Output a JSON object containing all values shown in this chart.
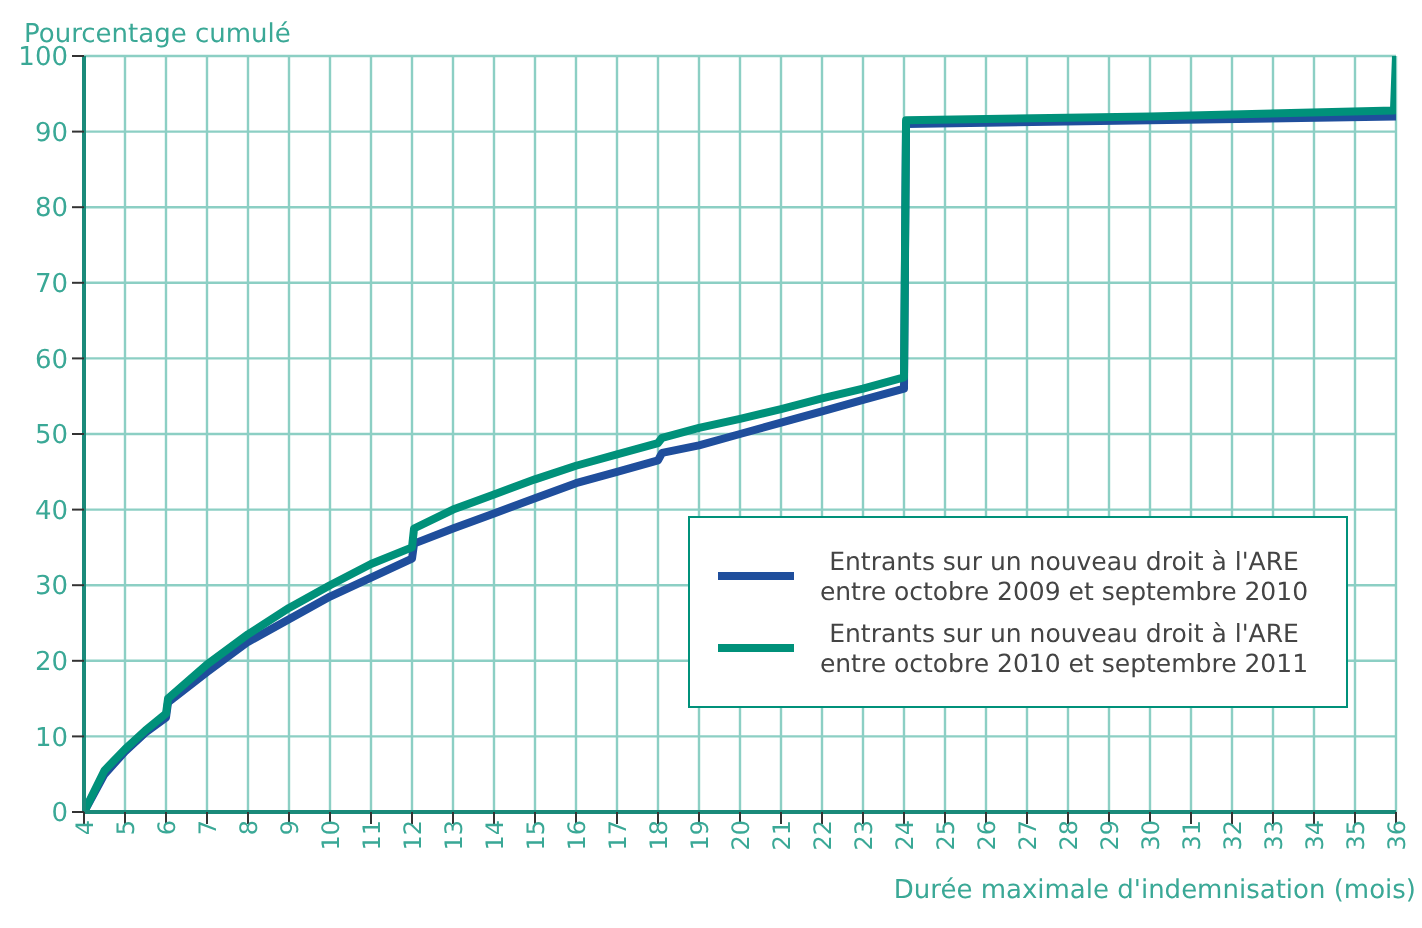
{
  "chart_data": {
    "type": "line",
    "ylabel": "Pourcentage cumulé",
    "xlabel": "Durée maximale d'indemnisation (mois)",
    "xlim": [
      4,
      36
    ],
    "xticks": [
      4,
      5,
      6,
      7,
      8,
      9,
      10,
      11,
      12,
      13,
      14,
      15,
      16,
      17,
      18,
      19,
      20,
      21,
      22,
      23,
      24,
      25,
      26,
      27,
      28,
      29,
      30,
      31,
      32,
      33,
      34,
      35,
      36
    ],
    "ylim": [
      0,
      100
    ],
    "yticks": [
      0,
      10,
      20,
      30,
      40,
      50,
      60,
      70,
      80,
      90,
      100
    ],
    "grid": true,
    "legend": "bottom right",
    "marker": "none",
    "line_style": "solid",
    "series": [
      {
        "name": "Entrants sur un nouveau droit à l'ARE entre octobre 2009 et septembre 2010",
        "color": "#1f4e9c",
        "x": [
          4,
          4.5,
          5,
          5.5,
          6,
          6.05,
          7,
          8,
          9,
          10,
          11,
          12,
          12.05,
          13,
          14,
          15,
          16,
          17,
          18,
          18.1,
          19,
          20,
          21,
          22,
          23,
          24,
          24.05,
          30,
          36
        ],
        "values": [
          0,
          5,
          8,
          10.5,
          12.5,
          14.5,
          18.5,
          22.5,
          25.5,
          28.5,
          31,
          33.5,
          35.5,
          37.5,
          39.5,
          41.5,
          43.5,
          45,
          46.5,
          47.5,
          48.5,
          50,
          51.5,
          53,
          54.5,
          56,
          91,
          91.5,
          92
        ]
      },
      {
        "name": "Entrants sur un nouveau droit à l'ARE entre octobre 2010 et septembre 2011",
        "color": "#00917a",
        "x": [
          4,
          4.5,
          5,
          5.5,
          6,
          6.05,
          7,
          8,
          9,
          10,
          11,
          12,
          12.05,
          13,
          14,
          15,
          16,
          17,
          18,
          18.1,
          19,
          20,
          21,
          22,
          23,
          24,
          24.05,
          30,
          35.95,
          36
        ],
        "values": [
          0,
          5.5,
          8.3,
          10.8,
          13,
          15,
          19.5,
          23.5,
          27,
          30,
          32.8,
          35,
          37.5,
          40,
          42,
          44,
          45.8,
          47.3,
          48.8,
          49.5,
          50.8,
          52,
          53.3,
          54.7,
          56,
          57.5,
          91.5,
          92,
          92.8,
          100
        ]
      }
    ]
  }
}
